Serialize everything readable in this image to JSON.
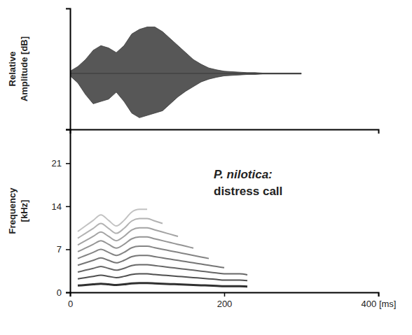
{
  "chart_data": [
    {
      "type": "area",
      "ylabel": "Relative Amplitude [dB]",
      "x": [
        0,
        10,
        20,
        30,
        40,
        50,
        60,
        70,
        80,
        90,
        100,
        110,
        120,
        130,
        140,
        150,
        160,
        170,
        180,
        190,
        200,
        210,
        220,
        230,
        240,
        250,
        260,
        270,
        280,
        290,
        300
      ],
      "series": [
        {
          "values": [
            0.05,
            0.15,
            0.3,
            0.5,
            0.6,
            0.55,
            0.45,
            0.6,
            0.85,
            0.95,
            1.0,
            1.0,
            0.9,
            0.75,
            0.6,
            0.45,
            0.3,
            0.2,
            0.12,
            0.08,
            0.05,
            0.04,
            0.03,
            0.02,
            0.02,
            0.01,
            0.01,
            0.01,
            0.01,
            0.01,
            0.01
          ]
        },
        {
          "values": [
            -0.05,
            -0.2,
            -0.45,
            -0.65,
            -0.6,
            -0.55,
            -0.4,
            -0.6,
            -0.85,
            -0.95,
            -0.9,
            -0.85,
            -0.8,
            -0.65,
            -0.5,
            -0.38,
            -0.28,
            -0.18,
            -0.12,
            -0.08,
            -0.05,
            -0.04,
            -0.03,
            -0.02,
            -0.02,
            -0.01,
            -0.01,
            -0.01,
            -0.01,
            -0.01,
            -0.01
          ]
        }
      ],
      "color": "#3a3a3a",
      "xlim": [
        0,
        400
      ],
      "xticks": [],
      "ylim": [
        -1.2,
        1.4
      ],
      "yticks": [],
      "tick_labels": false
    },
    {
      "type": "line",
      "ylabel": "Frequency [kHz]",
      "annotation": [
        "P. nilotica:",
        "distress call"
      ],
      "x": [
        10,
        20,
        30,
        40,
        50,
        60,
        70,
        80,
        90,
        100,
        110,
        120,
        130,
        140,
        150,
        160,
        170,
        180,
        190,
        200,
        210,
        220,
        230
      ],
      "series": [
        {
          "color": "#1a1a1a",
          "values": [
            1.1,
            1.2,
            1.3,
            1.4,
            1.3,
            1.2,
            1.3,
            1.45,
            1.5,
            1.5,
            1.45,
            1.4,
            1.35,
            1.3,
            1.25,
            1.2,
            1.15,
            1.1,
            1.05,
            1.0,
            1.0,
            1.0,
            0.95
          ]
        },
        {
          "color": "#3c3c3c",
          "values": [
            2.2,
            2.4,
            2.6,
            2.8,
            2.6,
            2.4,
            2.6,
            2.9,
            3.0,
            3.0,
            2.9,
            2.8,
            2.7,
            2.6,
            2.5,
            2.4,
            2.3,
            2.2,
            2.1,
            2.0,
            2.0,
            2.0,
            1.9
          ]
        },
        {
          "color": "#555555",
          "values": [
            3.3,
            3.6,
            3.9,
            4.2,
            3.9,
            3.6,
            3.9,
            4.35,
            4.5,
            4.5,
            4.35,
            4.2,
            4.05,
            3.9,
            3.75,
            3.6,
            3.45,
            3.3,
            3.15,
            3.0,
            3.0,
            3.0,
            2.85
          ]
        },
        {
          "color": "#666666",
          "values": [
            4.4,
            4.8,
            5.2,
            5.6,
            5.2,
            4.8,
            5.2,
            5.8,
            6.0,
            6.0,
            5.8,
            5.6,
            5.4,
            5.2,
            5.0,
            4.8,
            4.6,
            4.4,
            4.2,
            4.0,
            null,
            null,
            null
          ]
        },
        {
          "color": "#777777",
          "values": [
            5.5,
            6.0,
            6.5,
            7.0,
            6.5,
            6.0,
            6.5,
            7.25,
            7.5,
            7.5,
            7.25,
            7.0,
            6.75,
            6.5,
            6.25,
            6.0,
            5.75,
            5.5,
            null,
            null,
            null,
            null,
            null
          ]
        },
        {
          "color": "#888888",
          "values": [
            6.6,
            7.2,
            7.8,
            8.4,
            7.8,
            7.2,
            7.8,
            8.7,
            9.0,
            9.0,
            8.7,
            8.4,
            8.1,
            7.8,
            7.5,
            7.2,
            null,
            null,
            null,
            null,
            null,
            null,
            null
          ]
        },
        {
          "color": "#999999",
          "values": [
            7.7,
            8.4,
            9.1,
            9.8,
            9.1,
            8.4,
            9.1,
            10.15,
            10.5,
            10.5,
            10.15,
            9.8,
            9.45,
            9.1,
            null,
            null,
            null,
            null,
            null,
            null,
            null,
            null,
            null
          ]
        },
        {
          "color": "#aaaaaa",
          "values": [
            8.8,
            9.6,
            10.4,
            11.2,
            10.4,
            9.6,
            10.4,
            11.6,
            12.0,
            12.0,
            11.6,
            11.2,
            null,
            null,
            null,
            null,
            null,
            null,
            null,
            null,
            null,
            null,
            null
          ]
        },
        {
          "color": "#bbbbbb",
          "values": [
            9.9,
            10.8,
            11.7,
            12.6,
            11.7,
            10.8,
            11.7,
            13.05,
            13.5,
            13.5,
            null,
            null,
            null,
            null,
            null,
            null,
            null,
            null,
            null,
            null,
            null,
            null,
            null
          ]
        }
      ],
      "xlim": [
        0,
        400
      ],
      "xticks": [
        0,
        200,
        {
          "value": 400,
          "label": "400 [ms]"
        }
      ],
      "ylim": [
        0,
        26.5
      ],
      "yticks": [
        0,
        7,
        14,
        21
      ]
    }
  ]
}
